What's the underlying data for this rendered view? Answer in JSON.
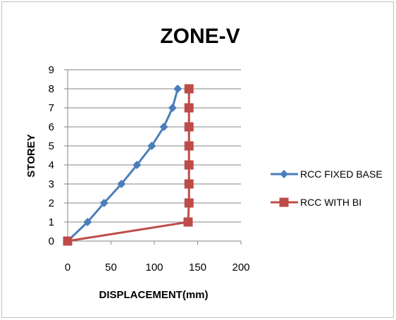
{
  "chart_data": {
    "type": "line",
    "title": "ZONE-V",
    "xlabel": "DISPLACEMENT(mm)",
    "ylabel": "STOREY",
    "xlim": [
      0,
      200
    ],
    "ylim": [
      0,
      9
    ],
    "xticks": [
      "0",
      "50",
      "100",
      "150",
      "200"
    ],
    "yticks": [
      "0",
      "1",
      "2",
      "3",
      "4",
      "5",
      "6",
      "7",
      "8",
      "9"
    ],
    "grid": "horizontal",
    "legend_position": "right",
    "series": [
      {
        "name": "RCC FIXED BASE",
        "color": "#4a7ebb",
        "marker": "diamond",
        "points": [
          [
            0,
            0
          ],
          [
            23,
            1
          ],
          [
            42,
            2
          ],
          [
            62,
            3
          ],
          [
            80,
            4
          ],
          [
            97,
            5
          ],
          [
            111,
            6
          ],
          [
            121,
            7
          ],
          [
            127,
            8
          ]
        ]
      },
      {
        "name": "RCC WITH BI",
        "color": "#be4b48",
        "marker": "square",
        "points": [
          [
            0,
            0
          ],
          [
            139,
            1
          ],
          [
            140,
            2
          ],
          [
            140,
            3
          ],
          [
            140,
            4
          ],
          [
            140,
            5
          ],
          [
            140,
            6
          ],
          [
            140,
            7
          ],
          [
            140,
            8
          ]
        ]
      }
    ]
  }
}
